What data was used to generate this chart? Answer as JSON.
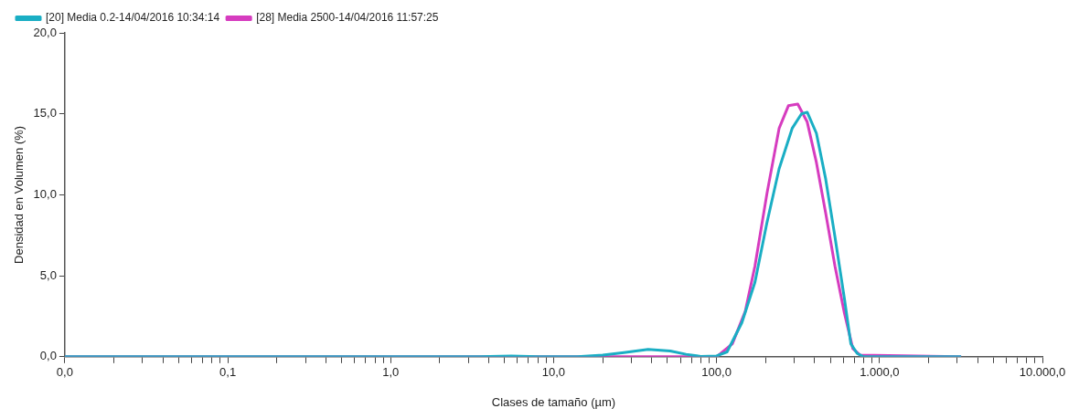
{
  "chart_data": {
    "type": "line",
    "xlabel": "Clases de tamaño (µm)",
    "ylabel": "Densidad en Volumen (%)",
    "log": "x",
    "grid": false,
    "legend": "top left",
    "marker": "none",
    "line_style": "solid",
    "xlim": [
      0.01,
      10000
    ],
    "xticks": [
      {
        "value": 0.01,
        "label": "0,0"
      },
      {
        "value": 0.02,
        "label": null
      },
      {
        "value": 0.03,
        "label": null
      },
      {
        "value": 0.04,
        "label": null
      },
      {
        "value": 0.05,
        "label": null
      },
      {
        "value": 0.06,
        "label": null
      },
      {
        "value": 0.07,
        "label": null
      },
      {
        "value": 0.08,
        "label": null
      },
      {
        "value": 0.09,
        "label": null
      },
      {
        "value": 0.1,
        "label": "0,1"
      },
      {
        "value": 0.2,
        "label": null
      },
      {
        "value": 0.3,
        "label": null
      },
      {
        "value": 0.4,
        "label": null
      },
      {
        "value": 0.5,
        "label": null
      },
      {
        "value": 0.6,
        "label": null
      },
      {
        "value": 0.7,
        "label": null
      },
      {
        "value": 0.8,
        "label": null
      },
      {
        "value": 0.9,
        "label": null
      },
      {
        "value": 1,
        "label": "1,0"
      },
      {
        "value": 2,
        "label": null
      },
      {
        "value": 3,
        "label": null
      },
      {
        "value": 4,
        "label": null
      },
      {
        "value": 5,
        "label": null
      },
      {
        "value": 6,
        "label": null
      },
      {
        "value": 7,
        "label": null
      },
      {
        "value": 8,
        "label": null
      },
      {
        "value": 9,
        "label": null
      },
      {
        "value": 10,
        "label": "10,0"
      },
      {
        "value": 20,
        "label": null
      },
      {
        "value": 30,
        "label": null
      },
      {
        "value": 40,
        "label": null
      },
      {
        "value": 50,
        "label": null
      },
      {
        "value": 60,
        "label": null
      },
      {
        "value": 70,
        "label": null
      },
      {
        "value": 80,
        "label": null
      },
      {
        "value": 90,
        "label": null
      },
      {
        "value": 100,
        "label": "100,0"
      },
      {
        "value": 200,
        "label": null
      },
      {
        "value": 300,
        "label": null
      },
      {
        "value": 400,
        "label": null
      },
      {
        "value": 500,
        "label": null
      },
      {
        "value": 600,
        "label": null
      },
      {
        "value": 700,
        "label": null
      },
      {
        "value": 800,
        "label": null
      },
      {
        "value": 900,
        "label": null
      },
      {
        "value": 1000,
        "label": "1.000,0"
      },
      {
        "value": 2000,
        "label": null
      },
      {
        "value": 3000,
        "label": null
      },
      {
        "value": 4000,
        "label": null
      },
      {
        "value": 5000,
        "label": null
      },
      {
        "value": 6000,
        "label": null
      },
      {
        "value": 7000,
        "label": null
      },
      {
        "value": 8000,
        "label": null
      },
      {
        "value": 9000,
        "label": null
      },
      {
        "value": 10000,
        "label": "10.000,0"
      }
    ],
    "ylim": [
      0,
      20
    ],
    "yticks": [
      {
        "value": 0,
        "label": "0,0"
      },
      {
        "value": 5,
        "label": "5,0"
      },
      {
        "value": 10,
        "label": "10,0"
      },
      {
        "value": 15,
        "label": "15,0"
      },
      {
        "value": 20,
        "label": "20,0"
      }
    ],
    "series": [
      {
        "name": "[20] Media 0.2-14/04/2016 10:34:14",
        "color": "#1aaec4",
        "x": [
          0.01,
          1,
          3.5,
          5.5,
          8,
          14,
          20,
          27,
          38,
          52,
          65,
          80,
          100,
          116,
          143,
          172,
          204,
          242,
          291,
          332,
          360,
          410,
          467,
          533,
          609,
          667,
          730,
          800,
          3170
        ],
        "values": [
          0,
          0,
          0,
          0.05,
          0,
          0,
          0.1,
          0.25,
          0.45,
          0.35,
          0.15,
          0.02,
          0.05,
          0.3,
          2.1,
          4.6,
          8.3,
          11.6,
          14.1,
          15.0,
          15.1,
          13.8,
          11.0,
          7.4,
          3.6,
          0.8,
          0.2,
          0,
          0
        ]
      },
      {
        "name": "[28] Media 2500-14/04/2016 11:57:25",
        "color": "#d63cbf",
        "x": [
          0.01,
          100,
          125,
          150,
          172,
          204,
          242,
          276,
          315,
          360,
          410,
          467,
          533,
          609,
          686,
          762,
          3170
        ],
        "values": [
          0,
          0,
          0.8,
          2.8,
          5.6,
          10.1,
          14.1,
          15.5,
          15.6,
          14.5,
          12.0,
          8.9,
          5.6,
          2.7,
          0.5,
          0.1,
          0
        ]
      }
    ]
  }
}
